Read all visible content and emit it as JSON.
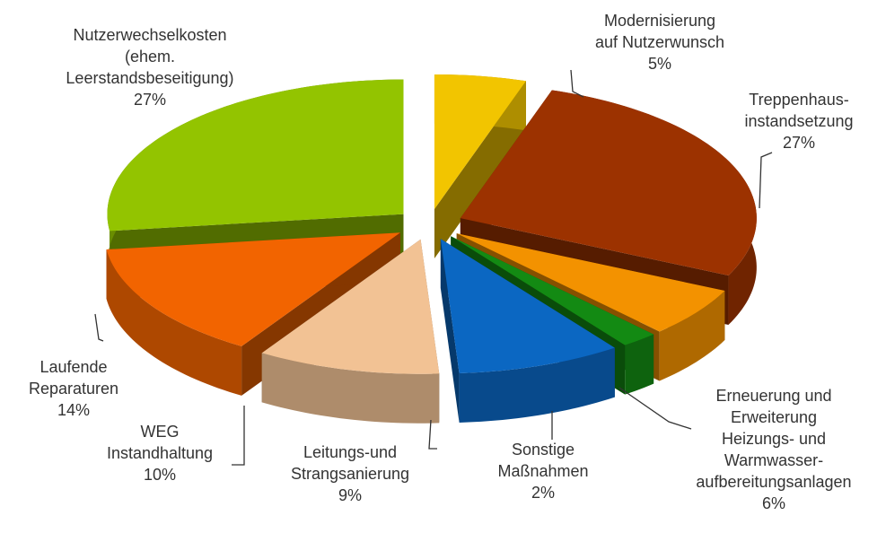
{
  "chart_data": {
    "type": "pie3d",
    "categories": [
      [
        "Modernisierung",
        "auf Nutzerwunsch"
      ],
      [
        "Treppenhaus-",
        "instandsetzung"
      ],
      [
        "Erneuerung und",
        "Erweiterung",
        "Heizungs- und",
        "Warmwasser-",
        "aufbereitungsanlagen"
      ],
      [
        "Sonstige",
        "Maßnahmen"
      ],
      [
        "Leitungs-und",
        "Strangsanierung"
      ],
      [
        "WEG",
        "Instandhaltung"
      ],
      [
        "Laufende",
        "Reparaturen"
      ],
      [
        "Nutzerwechselkosten",
        "(ehem.",
        "Leerstandsbeseitigung)"
      ]
    ],
    "values": [
      5,
      27,
      6,
      2,
      9,
      10,
      14,
      27
    ],
    "value_labels": [
      "5%",
      "27%",
      "6%",
      "2%",
      "9%",
      "10%",
      "14%",
      "27%"
    ],
    "colors": [
      "#f2c500",
      "#9c3200",
      "#f39200",
      "#138a13",
      "#0b67c2",
      "#f2c294",
      "#f26400",
      "#93c400"
    ]
  }
}
